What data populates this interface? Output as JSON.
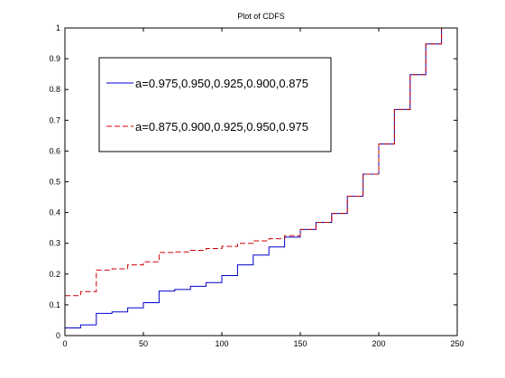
{
  "chart_data": {
    "type": "line",
    "title": "Plot of CDFS",
    "xlabel": "",
    "ylabel": "",
    "xlim": [
      0,
      250
    ],
    "ylim": [
      0,
      1
    ],
    "xticks": [
      0,
      50,
      100,
      150,
      200,
      250
    ],
    "yticks": [
      0,
      0.1,
      0.2,
      0.3,
      0.4,
      0.5,
      0.6,
      0.7,
      0.8,
      0.9,
      1
    ],
    "grid": false,
    "legend_position": "top-left",
    "series": [
      {
        "name": "a=0.975,0.950,0.925,0.900,0.875",
        "color": "#0000cc",
        "style": "solid",
        "step": true,
        "x": [
          0,
          10,
          20,
          30,
          40,
          50,
          60,
          70,
          80,
          90,
          100,
          110,
          120,
          130,
          140,
          150,
          160,
          170,
          180,
          190,
          200,
          210,
          220,
          230,
          240
        ],
        "y": [
          0.025,
          0.035,
          0.072,
          0.077,
          0.09,
          0.107,
          0.145,
          0.15,
          0.16,
          0.172,
          0.195,
          0.23,
          0.262,
          0.288,
          0.32,
          0.345,
          0.368,
          0.397,
          0.453,
          0.525,
          0.623,
          0.735,
          0.848,
          0.948,
          1.0
        ]
      },
      {
        "name": "a=0.875,0.900,0.925,0.950,0.975",
        "color": "#cc0000",
        "style": "dashed",
        "step": true,
        "x": [
          0,
          10,
          20,
          30,
          40,
          50,
          60,
          70,
          80,
          90,
          100,
          110,
          120,
          130,
          140,
          150,
          160,
          170,
          180,
          190,
          200,
          210,
          220,
          230,
          240
        ],
        "y": [
          0.13,
          0.143,
          0.213,
          0.217,
          0.23,
          0.24,
          0.27,
          0.272,
          0.277,
          0.283,
          0.29,
          0.3,
          0.308,
          0.315,
          0.325,
          0.345,
          0.368,
          0.397,
          0.453,
          0.525,
          0.623,
          0.735,
          0.848,
          0.948,
          1.0
        ]
      }
    ]
  }
}
